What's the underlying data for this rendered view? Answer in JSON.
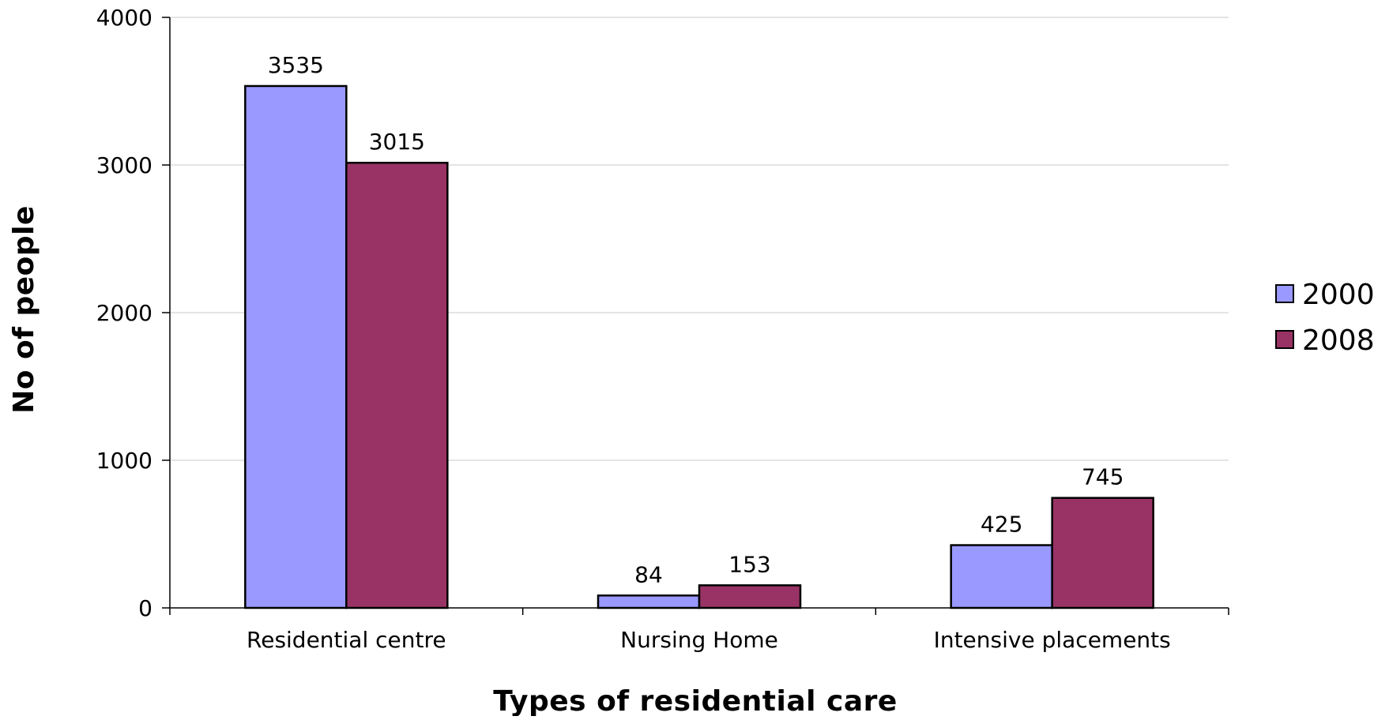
{
  "chart_data": {
    "type": "bar",
    "title": "",
    "xlabel": "Types of residential care",
    "ylabel": "No of people",
    "categories": [
      "Residential centre",
      "Nursing Home",
      "Intensive placements"
    ],
    "series": [
      {
        "name": "2000",
        "values": [
          3535,
          84,
          425
        ],
        "color": "#9999ff"
      },
      {
        "name": "2008",
        "values": [
          3015,
          153,
          745
        ],
        "color": "#993366"
      }
    ],
    "ylim": [
      0,
      4000
    ],
    "yticks": [
      0,
      1000,
      2000,
      3000,
      4000
    ],
    "grid": true,
    "legend_position": "right",
    "data_labels": true
  }
}
